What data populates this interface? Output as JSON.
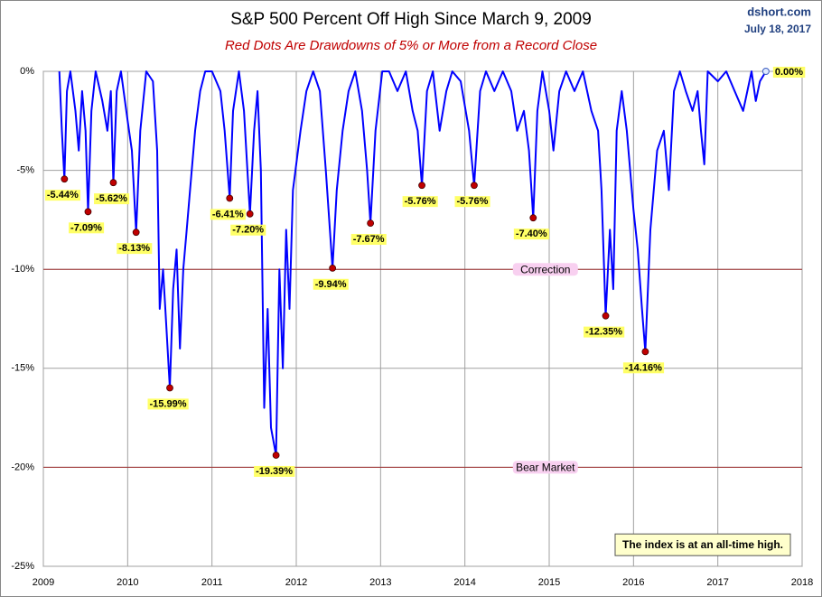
{
  "chart_data": {
    "type": "line",
    "title": "S&P 500 Percent Off High Since March 9, 2009",
    "subtitle": "Red Dots Are Drawdowns of 5% or More from a Record Close",
    "source": "dshort.com",
    "date": "July 18, 2017",
    "note": "The index is at an all-time high.",
    "color": "#0000ff",
    "dot_color": "#c00000",
    "grid": true,
    "xlim": [
      2009,
      2018
    ],
    "xticks": [
      2009,
      2010,
      2011,
      2012,
      2013,
      2014,
      2015,
      2016,
      2017,
      2018
    ],
    "ylim": [
      -25,
      0
    ],
    "yticks": [
      {
        "value": 0,
        "label": "0%"
      },
      {
        "value": -5,
        "label": "-5%"
      },
      {
        "value": -10,
        "label": "-10%"
      },
      {
        "value": -15,
        "label": "-15%"
      },
      {
        "value": -20,
        "label": "-20%"
      },
      {
        "value": -25,
        "label": "-25%"
      }
    ],
    "reference_lines": [
      {
        "value": -10,
        "label": "Correction",
        "color": "#a03030"
      },
      {
        "value": -20,
        "label": "Bear Market",
        "color": "#a03030"
      }
    ],
    "x": [
      2009.19,
      2009.22,
      2009.25,
      2009.28,
      2009.32,
      2009.38,
      2009.42,
      2009.46,
      2009.5,
      2009.53,
      2009.57,
      2009.62,
      2009.7,
      2009.76,
      2009.8,
      2009.83,
      2009.87,
      2009.92,
      2010.0,
      2010.05,
      2010.1,
      2010.15,
      2010.22,
      2010.3,
      2010.35,
      2010.38,
      2010.42,
      2010.46,
      2010.5,
      2010.54,
      2010.58,
      2010.62,
      2010.66,
      2010.7,
      2010.74,
      2010.8,
      2010.86,
      2010.92,
      2011.0,
      2011.1,
      2011.15,
      2011.21,
      2011.25,
      2011.32,
      2011.38,
      2011.42,
      2011.45,
      2011.5,
      2011.54,
      2011.58,
      2011.62,
      2011.66,
      2011.7,
      2011.76,
      2011.8,
      2011.84,
      2011.88,
      2011.92,
      2011.96,
      2012.05,
      2012.12,
      2012.2,
      2012.28,
      2012.35,
      2012.43,
      2012.48,
      2012.55,
      2012.62,
      2012.7,
      2012.78,
      2012.84,
      2012.88,
      2012.94,
      2013.02,
      2013.1,
      2013.2,
      2013.3,
      2013.38,
      2013.44,
      2013.49,
      2013.55,
      2013.62,
      2013.7,
      2013.78,
      2013.85,
      2013.95,
      2014.05,
      2014.11,
      2014.18,
      2014.25,
      2014.35,
      2014.45,
      2014.55,
      2014.62,
      2014.7,
      2014.76,
      2014.81,
      2014.86,
      2014.92,
      2015.0,
      2015.05,
      2015.12,
      2015.2,
      2015.3,
      2015.4,
      2015.5,
      2015.58,
      2015.62,
      2015.67,
      2015.72,
      2015.76,
      2015.8,
      2015.86,
      2015.92,
      2016.0,
      2016.05,
      2016.1,
      2016.14,
      2016.2,
      2016.28,
      2016.36,
      2016.42,
      2016.48,
      2016.55,
      2016.62,
      2016.7,
      2016.76,
      2016.8,
      2016.84,
      2016.88,
      2017.0,
      2017.1,
      2017.2,
      2017.3,
      2017.4,
      2017.45,
      2017.5,
      2017.57
    ],
    "values": [
      0,
      -3,
      -5.44,
      -1,
      0,
      -2,
      -4,
      -1,
      -3,
      -7.09,
      -2,
      0,
      -1.5,
      -3,
      -1,
      -5.62,
      -1,
      0,
      -2.5,
      -4,
      -8.13,
      -3,
      0,
      -0.5,
      -4,
      -12,
      -10,
      -13,
      -15.99,
      -11,
      -9,
      -14,
      -10,
      -8,
      -6,
      -3,
      -1,
      0,
      0,
      -1,
      -3,
      -6.41,
      -2,
      0,
      -2,
      -5,
      -7.2,
      -3,
      -1,
      -5,
      -17,
      -12,
      -18,
      -19.39,
      -10,
      -15,
      -8,
      -12,
      -6,
      -3,
      -1,
      0,
      -1,
      -5,
      -9.94,
      -6,
      -3,
      -1,
      0,
      -2,
      -5,
      -7.67,
      -3,
      0,
      0,
      -1,
      0,
      -2,
      -3,
      -5.76,
      -1,
      0,
      -3,
      -1,
      0,
      -0.5,
      -3,
      -5.76,
      -1,
      0,
      -1,
      0,
      -1,
      -3,
      -2,
      -4,
      -7.4,
      -2,
      0,
      -2,
      -4,
      -1,
      0,
      -1,
      0,
      -2,
      -3,
      -6,
      -12.35,
      -8,
      -11,
      -3,
      -1,
      -3,
      -7,
      -9,
      -12,
      -14.16,
      -8,
      -4,
      -3,
      -6,
      -1,
      0,
      -1,
      -2,
      -1,
      -3,
      -4.7,
      0,
      -0.5,
      0,
      -1,
      -2,
      0,
      -1.5,
      -0.5,
      0
    ],
    "drawdowns": [
      {
        "x": 2009.25,
        "value": -5.44,
        "label": "-5.44%"
      },
      {
        "x": 2009.53,
        "value": -7.09,
        "label": "-7.09%"
      },
      {
        "x": 2009.83,
        "value": -5.62,
        "label": "-5.62%"
      },
      {
        "x": 2010.1,
        "value": -8.13,
        "label": "-8.13%"
      },
      {
        "x": 2010.5,
        "value": -15.99,
        "label": "-15.99%"
      },
      {
        "x": 2011.21,
        "value": -6.41,
        "label": "-6.41%"
      },
      {
        "x": 2011.45,
        "value": -7.2,
        "label": "-7.20%"
      },
      {
        "x": 2011.76,
        "value": -19.39,
        "label": "-19.39%"
      },
      {
        "x": 2012.43,
        "value": -9.94,
        "label": "-9.94%"
      },
      {
        "x": 2012.88,
        "value": -7.67,
        "label": "-7.67%"
      },
      {
        "x": 2013.49,
        "value": -5.76,
        "label": "-5.76%"
      },
      {
        "x": 2014.11,
        "value": -5.76,
        "label": "-5.76%"
      },
      {
        "x": 2014.81,
        "value": -7.4,
        "label": "-7.40%"
      },
      {
        "x": 2015.67,
        "value": -12.35,
        "label": "-12.35%"
      },
      {
        "x": 2016.14,
        "value": -14.16,
        "label": "-14.16%"
      }
    ],
    "latest": {
      "x": 2017.57,
      "value": 0,
      "label": "0.00%"
    }
  }
}
